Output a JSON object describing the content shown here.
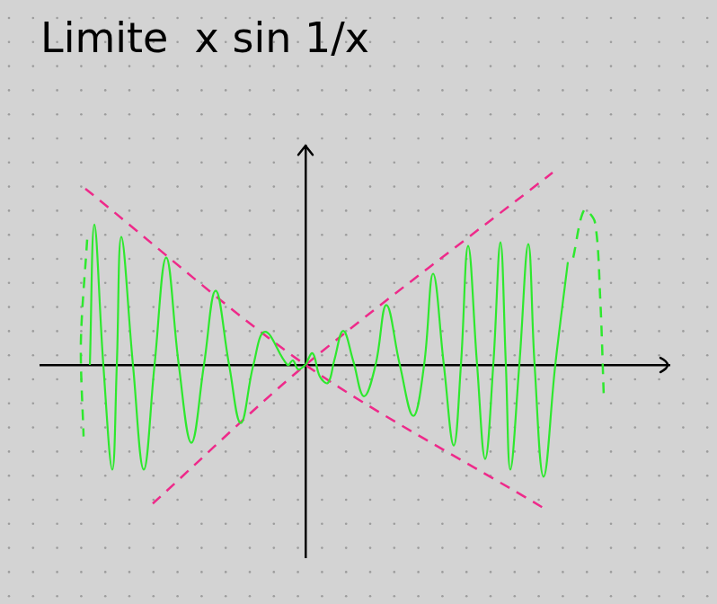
{
  "chart_data": {
    "type": "line",
    "title": "Limite  x sin 1/x",
    "xlim": [
      -2.95,
      4.05
    ],
    "ylim": [
      -2.15,
      2.45
    ],
    "tick_labels": false,
    "grid": false,
    "series": [
      {
        "color": "#2ee82e",
        "line_style": "solid",
        "x": [
          0,
          0.08,
          0.16,
          0.25,
          0.32,
          0.42,
          0.53,
          0.65,
          0.78,
          0.9,
          1.05,
          1.2,
          1.32,
          1.42,
          1.54,
          1.65,
          1.73,
          1.81,
          1.91,
          2.0,
          2.09,
          2.17,
          2.23,
          2.28,
          2.38,
          2.48,
          2.55,
          2.65,
          2.78,
          2.92
        ],
        "values": [
          0,
          0.13,
          -0.13,
          -0.2,
          0.05,
          0.38,
          0.05,
          -0.35,
          0,
          0.67,
          0,
          -0.57,
          0,
          1.02,
          0,
          -0.9,
          0,
          1.33,
          0,
          -1.05,
          0,
          1.37,
          0,
          -1.17,
          0,
          1.35,
          0,
          -1.25,
          0,
          1.15
        ]
      },
      {
        "color": "#2ee82e",
        "line_style": "dashed",
        "x": [
          2.98,
          3.1,
          3.22,
          3.28,
          3.32
        ],
        "values": [
          1.2,
          1.73,
          1.6,
          0.75,
          -0.35
        ]
      },
      {
        "color": "#2ee82e",
        "line_style": "solid",
        "x": [
          0,
          -0.08,
          -0.14,
          -0.2,
          -0.45,
          -0.58,
          -0.72,
          -0.85,
          -1.0,
          -1.13,
          -1.27,
          -1.41,
          -1.55,
          -1.68,
          -1.8,
          -1.92,
          -2.05,
          -2.1,
          -2.15,
          -2.25,
          -2.35,
          -2.4
        ],
        "values": [
          0,
          -0.05,
          0.05,
          0,
          0.37,
          0,
          -0.65,
          0,
          0.83,
          0,
          -0.87,
          0,
          1.2,
          0,
          -1.17,
          0,
          1.43,
          0,
          -1.17,
          0,
          1.57,
          0
        ]
      },
      {
        "color": "#2ee82e",
        "line_style": "dashed",
        "x": [
          -2.43,
          -2.5,
          -2.47
        ],
        "values": [
          1.4,
          0.25,
          -0.8
        ]
      },
      {
        "color": "#ee2a8a",
        "line_style": "dashed",
        "x": [
          -2.45,
          0,
          2.65
        ],
        "values": [
          1.97,
          0,
          -1.6
        ]
      },
      {
        "color": "#ee2a8a",
        "line_style": "dashed",
        "x": [
          -1.7,
          0,
          2.75
        ],
        "values": [
          -1.55,
          0,
          2.15
        ]
      }
    ]
  }
}
